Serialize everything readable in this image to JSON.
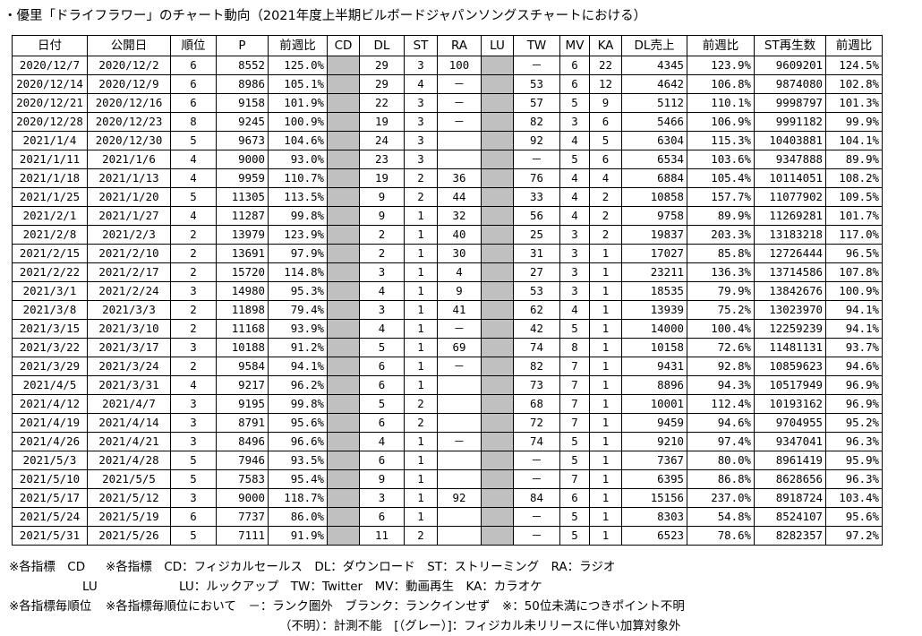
{
  "title": "・優里「ドライフラワー」のチャート動向（2021年度上半期ビルボードジャパンソングスチャートにおける）",
  "headers": [
    "日付",
    "公開日",
    "順位",
    "P",
    "前週比",
    "CD",
    "DL",
    "ST",
    "RA",
    "LU",
    "TW",
    "MV",
    "KA",
    "DL売上",
    "前週比",
    "ST再生数",
    "前週比"
  ],
  "rows": [
    [
      "2020/12/7",
      "2020/12/2",
      "6",
      "8552",
      "125.0%",
      "",
      "29",
      "3",
      "100",
      "",
      "－",
      "6",
      "22",
      "4345",
      "123.9%",
      "9609201",
      "124.5%"
    ],
    [
      "2020/12/14",
      "2020/12/9",
      "6",
      "8986",
      "105.1%",
      "",
      "29",
      "4",
      "－",
      "",
      "53",
      "6",
      "12",
      "4642",
      "106.8%",
      "9874080",
      "102.8%"
    ],
    [
      "2020/12/21",
      "2020/12/16",
      "6",
      "9158",
      "101.9%",
      "",
      "22",
      "3",
      "－",
      "",
      "57",
      "5",
      "9",
      "5112",
      "110.1%",
      "9998797",
      "101.3%"
    ],
    [
      "2020/12/28",
      "2020/12/23",
      "8",
      "9245",
      "100.9%",
      "",
      "19",
      "3",
      "－",
      "",
      "82",
      "3",
      "6",
      "5466",
      "106.9%",
      "9991182",
      "99.9%"
    ],
    [
      "2021/1/4",
      "2020/12/30",
      "5",
      "9673",
      "104.6%",
      "",
      "24",
      "3",
      "",
      "",
      "92",
      "4",
      "5",
      "6304",
      "115.3%",
      "10403881",
      "104.1%"
    ],
    [
      "2021/1/11",
      "2021/1/6",
      "4",
      "9000",
      "93.0%",
      "",
      "23",
      "3",
      "",
      "",
      "－",
      "5",
      "6",
      "6534",
      "103.6%",
      "9347888",
      "89.9%"
    ],
    [
      "2021/1/18",
      "2021/1/13",
      "4",
      "9959",
      "110.7%",
      "",
      "19",
      "2",
      "36",
      "",
      "76",
      "4",
      "4",
      "6884",
      "105.4%",
      "10114051",
      "108.2%"
    ],
    [
      "2021/1/25",
      "2021/1/20",
      "5",
      "11305",
      "113.5%",
      "",
      "9",
      "2",
      "44",
      "",
      "33",
      "4",
      "2",
      "10858",
      "157.7%",
      "11077902",
      "109.5%"
    ],
    [
      "2021/2/1",
      "2021/1/27",
      "4",
      "11287",
      "99.8%",
      "",
      "9",
      "1",
      "32",
      "",
      "56",
      "4",
      "2",
      "9758",
      "89.9%",
      "11269281",
      "101.7%"
    ],
    [
      "2021/2/8",
      "2021/2/3",
      "2",
      "13979",
      "123.9%",
      "",
      "2",
      "1",
      "40",
      "",
      "25",
      "3",
      "2",
      "19837",
      "203.3%",
      "13183218",
      "117.0%"
    ],
    [
      "2021/2/15",
      "2021/2/10",
      "2",
      "13691",
      "97.9%",
      "",
      "2",
      "1",
      "30",
      "",
      "31",
      "3",
      "1",
      "17027",
      "85.8%",
      "12726444",
      "96.5%"
    ],
    [
      "2021/2/22",
      "2021/2/17",
      "2",
      "15720",
      "114.8%",
      "",
      "3",
      "1",
      "4",
      "",
      "27",
      "3",
      "1",
      "23211",
      "136.3%",
      "13714586",
      "107.8%"
    ],
    [
      "2021/3/1",
      "2021/2/24",
      "3",
      "14980",
      "95.3%",
      "",
      "4",
      "1",
      "9",
      "",
      "53",
      "3",
      "1",
      "18535",
      "79.9%",
      "13842676",
      "100.9%"
    ],
    [
      "2021/3/8",
      "2021/3/3",
      "2",
      "11898",
      "79.4%",
      "",
      "3",
      "1",
      "41",
      "",
      "62",
      "4",
      "1",
      "13939",
      "75.2%",
      "13023970",
      "94.1%"
    ],
    [
      "2021/3/15",
      "2021/3/10",
      "2",
      "11168",
      "93.9%",
      "",
      "4",
      "1",
      "－",
      "",
      "42",
      "5",
      "1",
      "14000",
      "100.4%",
      "12259239",
      "94.1%"
    ],
    [
      "2021/3/22",
      "2021/3/17",
      "3",
      "10188",
      "91.2%",
      "",
      "5",
      "1",
      "69",
      "",
      "74",
      "8",
      "1",
      "10158",
      "72.6%",
      "11481131",
      "93.7%"
    ],
    [
      "2021/3/29",
      "2021/3/24",
      "2",
      "9584",
      "94.1%",
      "",
      "6",
      "1",
      "－",
      "",
      "82",
      "7",
      "1",
      "9431",
      "92.8%",
      "10859623",
      "94.6%"
    ],
    [
      "2021/4/5",
      "2021/3/31",
      "4",
      "9217",
      "96.2%",
      "",
      "6",
      "1",
      "",
      "",
      "73",
      "7",
      "1",
      "8896",
      "94.3%",
      "10517949",
      "96.9%"
    ],
    [
      "2021/4/12",
      "2021/4/7",
      "3",
      "9195",
      "99.8%",
      "",
      "5",
      "2",
      "",
      "",
      "68",
      "7",
      "1",
      "10001",
      "112.4%",
      "10193162",
      "96.9%"
    ],
    [
      "2021/4/19",
      "2021/4/14",
      "3",
      "8791",
      "95.6%",
      "",
      "6",
      "2",
      "",
      "",
      "72",
      "7",
      "1",
      "9459",
      "94.6%",
      "9704955",
      "95.2%"
    ],
    [
      "2021/4/26",
      "2021/4/21",
      "3",
      "8496",
      "96.6%",
      "",
      "4",
      "1",
      "－",
      "",
      "74",
      "5",
      "1",
      "9210",
      "97.4%",
      "9347041",
      "96.3%"
    ],
    [
      "2021/5/3",
      "2021/4/28",
      "5",
      "7946",
      "93.5%",
      "",
      "6",
      "1",
      "",
      "",
      "－",
      "5",
      "1",
      "7367",
      "80.0%",
      "8961419",
      "95.9%"
    ],
    [
      "2021/5/10",
      "2021/5/5",
      "5",
      "7583",
      "95.4%",
      "",
      "9",
      "1",
      "",
      "",
      "－",
      "7",
      "1",
      "6395",
      "86.8%",
      "8628656",
      "96.3%"
    ],
    [
      "2021/5/17",
      "2021/5/12",
      "3",
      "9000",
      "118.7%",
      "",
      "3",
      "1",
      "92",
      "",
      "84",
      "6",
      "1",
      "15156",
      "237.0%",
      "8918724",
      "103.4%"
    ],
    [
      "2021/5/24",
      "2021/5/19",
      "6",
      "7737",
      "86.0%",
      "",
      "6",
      "1",
      "",
      "",
      "－",
      "5",
      "1",
      "8303",
      "54.8%",
      "8524107",
      "95.6%"
    ],
    [
      "2021/5/31",
      "2021/5/26",
      "5",
      "7111",
      "91.9%",
      "",
      "11",
      "2",
      "",
      "",
      "－",
      "5",
      "1",
      "6523",
      "78.6%",
      "8282357",
      "97.2%"
    ]
  ],
  "notes": {
    "line1_a": "※各指標　CD",
    "line1_b": "※各指標　CD：フィジカルセールス　DL：ダウンロード　ST：ストリーミング　RA：ラジオ",
    "line2_a": "LU",
    "line2_b": "LU：ルックアップ　TW：Twitter　MV：動画再生　KA：カラオケ",
    "line3_a": "※各指標毎順位",
    "line3_b": "※各指標毎順位において　－：ランク圏外　ブランク：ランクインせず　※：50位未満につきポイント不明",
    "line4": "（不明）：計測不能　[（グレー）]：フィジカル未リリースに伴い加算対象外"
  },
  "colors": {
    "gray_cell": "#c0c0c0"
  }
}
